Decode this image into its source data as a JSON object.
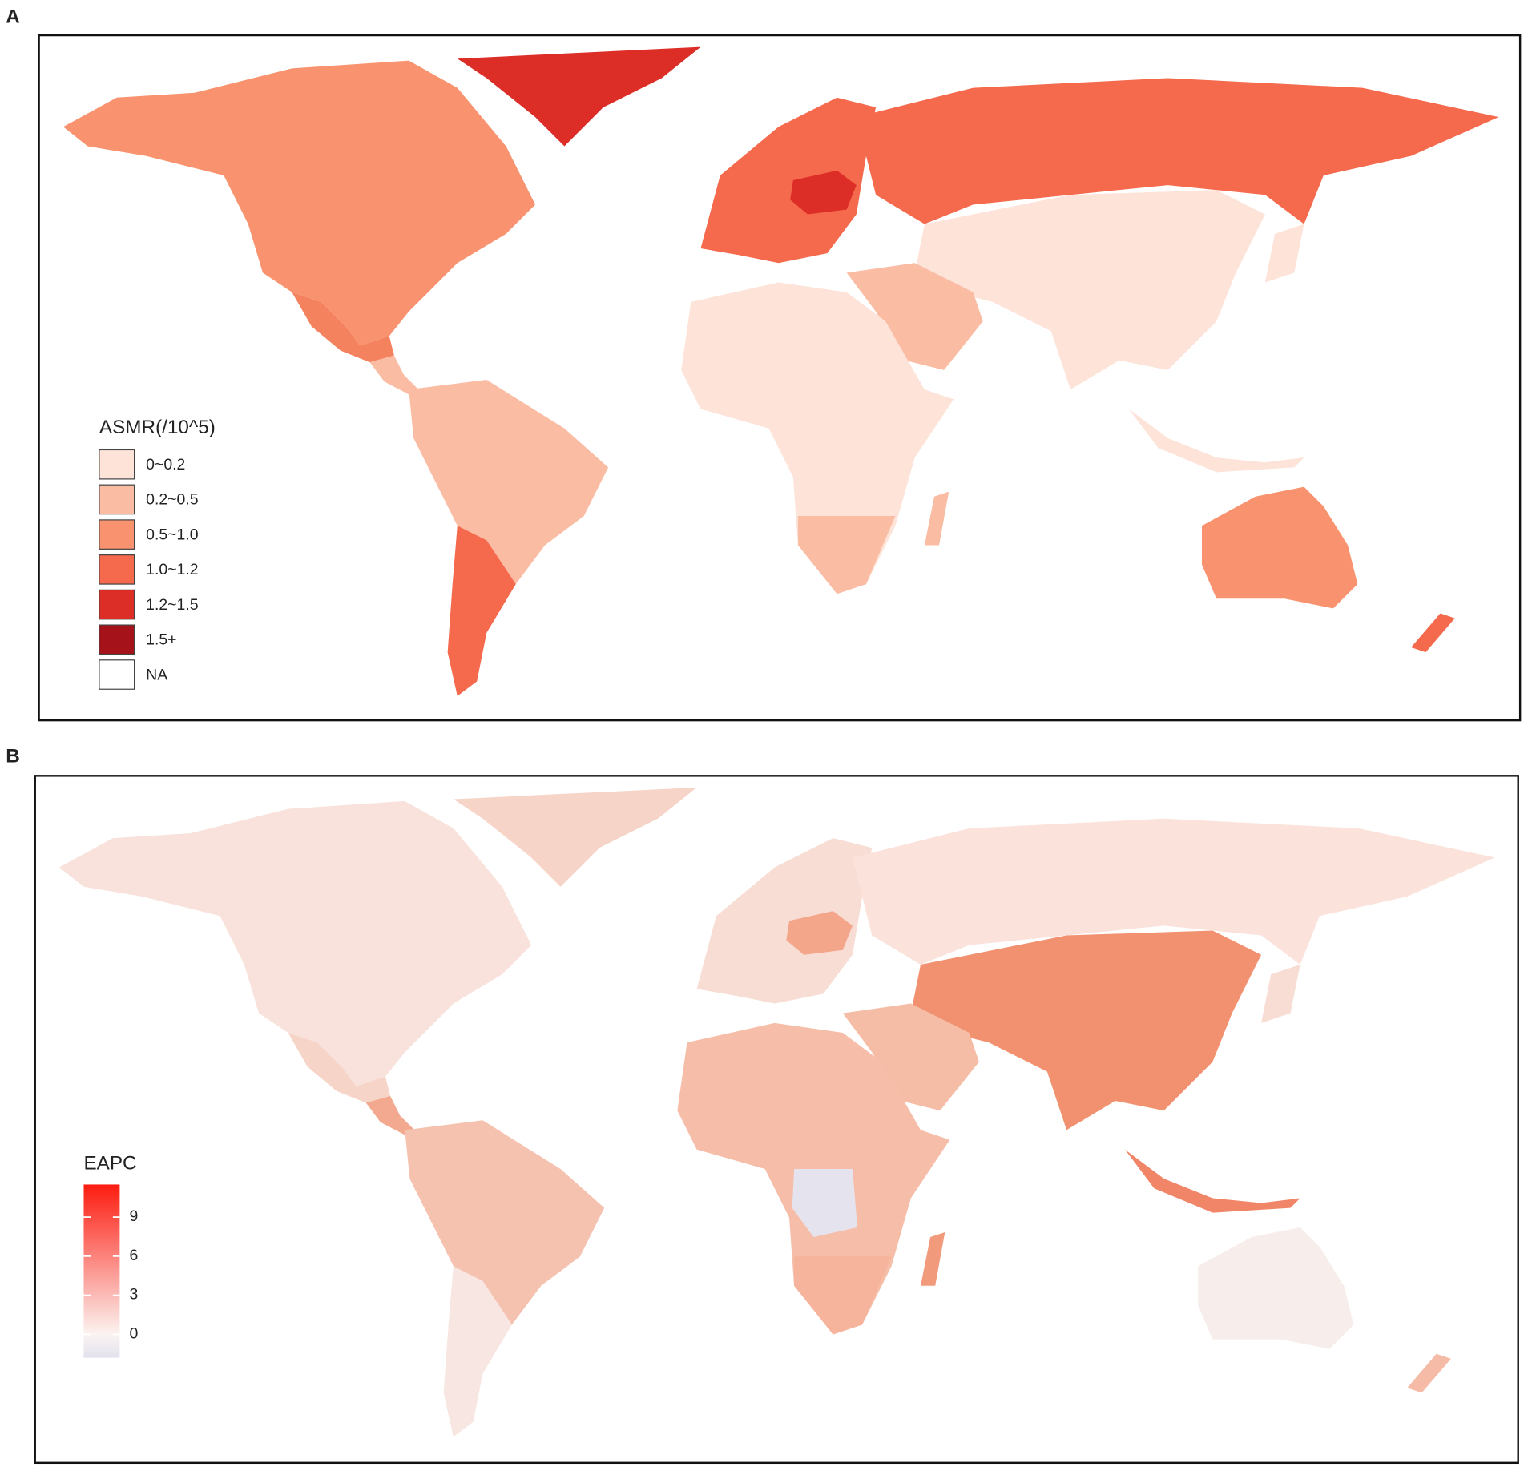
{
  "panels": [
    {
      "label": "A",
      "legend": {
        "title": "ASMR(/10^5)",
        "categories": [
          "0~0.2",
          "0.2~0.5",
          "0.5~1.0",
          "1.0~1.2",
          "1.2~1.5",
          "1.5+",
          "NA"
        ],
        "colors": [
          "#fde3d8",
          "#fbbca4",
          "#f8926f",
          "#f5694d",
          "#dc2d27",
          "#a5121a",
          "#ffffff"
        ]
      }
    },
    {
      "label": "B",
      "colorbar": {
        "title": "EAPC",
        "range": [
          -1.8,
          11.5
        ],
        "ticks": [
          0,
          3,
          6,
          9
        ],
        "color_stops": [
          {
            "value": -1.8,
            "color": "#e2e2ee"
          },
          {
            "value": 0,
            "color": "#fbf3f1"
          },
          {
            "value": 11.5,
            "color": "#fc1c10"
          }
        ]
      }
    }
  ]
}
